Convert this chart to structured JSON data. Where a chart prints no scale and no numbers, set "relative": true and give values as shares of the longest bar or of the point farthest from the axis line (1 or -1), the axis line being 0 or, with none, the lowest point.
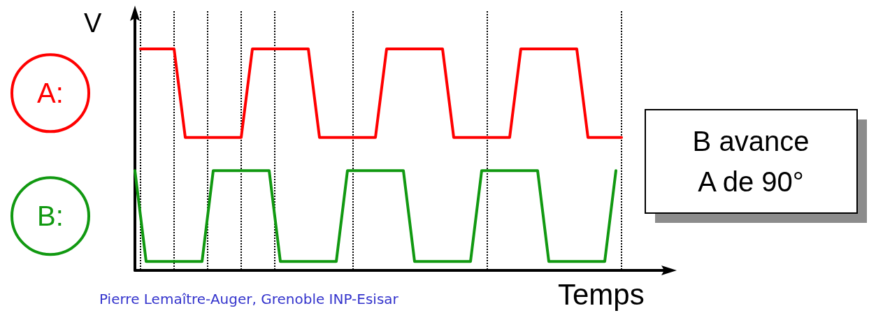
{
  "chart_data": {
    "type": "line",
    "relative": true,
    "xlabel": "Temps",
    "ylabel": "V",
    "categories": [
      null,
      null,
      null,
      null,
      null,
      null,
      null,
      null,
      null,
      null,
      null,
      null,
      null,
      null,
      null,
      null,
      null,
      null,
      null,
      null,
      null,
      null,
      null,
      null,
      null,
      null,
      null,
      null,
      null,
      null,
      null,
      null,
      null,
      null,
      null,
      null,
      null,
      null,
      null,
      null,
      null,
      null,
      null,
      null,
      null,
      null,
      null,
      null,
      null,
      null,
      null,
      null,
      null,
      null,
      null,
      null,
      null,
      null,
      null,
      null,
      null,
      null,
      null,
      null,
      null,
      null,
      null,
      null,
      null,
      null,
      null,
      null,
      null,
      null,
      null,
      null,
      null,
      null,
      null,
      null,
      null,
      null,
      null,
      null,
      null,
      null,
      null,
      null
    ],
    "grid": "x",
    "legend": false,
    "line_style": "solid",
    "series": [
      {
        "name": "A:",
        "color": "#ff0000",
        "values": [
          null,
          1,
          1,
          1,
          1,
          1,
          1,
          1,
          0.8,
          0.6,
          0.6,
          0.6,
          0.6,
          0.6,
          0.6,
          0.6,
          0.6,
          0.6,
          0.6,
          0.6,
          0.8,
          1,
          1,
          1,
          1,
          1,
          1,
          1,
          1,
          1,
          1,
          1,
          0.8,
          0.6,
          0.6,
          0.6,
          0.6,
          0.6,
          0.6,
          0.6,
          0.6,
          0.6,
          0.6,
          0.6,
          0.8,
          1,
          1,
          1,
          1,
          1,
          1,
          1,
          1,
          1,
          1,
          1,
          0.8,
          0.6,
          0.6,
          0.6,
          0.6,
          0.6,
          0.6,
          0.6,
          0.6,
          0.6,
          0.6,
          0.6,
          0.8,
          1,
          1,
          1,
          1,
          1,
          1,
          1,
          1,
          1,
          1,
          1,
          0.8,
          0.6,
          0.6,
          0.6,
          0.6,
          0.6,
          0.6,
          0.6
        ]
      },
      {
        "name": "B:",
        "color": "#119911",
        "values": [
          0.45,
          0.245,
          0.04,
          0.04,
          0.04,
          0.04,
          0.04,
          0.04,
          0.04,
          0.04,
          0.04,
          0.04,
          0.04,
          0.245,
          0.45,
          0.45,
          0.45,
          0.45,
          0.45,
          0.45,
          0.45,
          0.45,
          0.45,
          0.45,
          0.45,
          0.245,
          0.04,
          0.04,
          0.04,
          0.04,
          0.04,
          0.04,
          0.04,
          0.04,
          0.04,
          0.04,
          0.04,
          0.245,
          0.45,
          0.45,
          0.45,
          0.45,
          0.45,
          0.45,
          0.45,
          0.45,
          0.45,
          0.45,
          0.45,
          0.245,
          0.04,
          0.04,
          0.04,
          0.04,
          0.04,
          0.04,
          0.04,
          0.04,
          0.04,
          0.04,
          0.04,
          0.245,
          0.45,
          0.45,
          0.45,
          0.45,
          0.45,
          0.45,
          0.45,
          0.45,
          0.45,
          0.45,
          0.45,
          0.245,
          0.04,
          0.04,
          0.04,
          0.04,
          0.04,
          0.04,
          0.04,
          0.04,
          0.04,
          0.04,
          0.04,
          0.245,
          0.45,
          null
        ]
      }
    ],
    "annotations": [
      "B avance\nA de 90°",
      "Pierre Lemaître-Auger, Grenoble INP-Esisar"
    ]
  }
}
